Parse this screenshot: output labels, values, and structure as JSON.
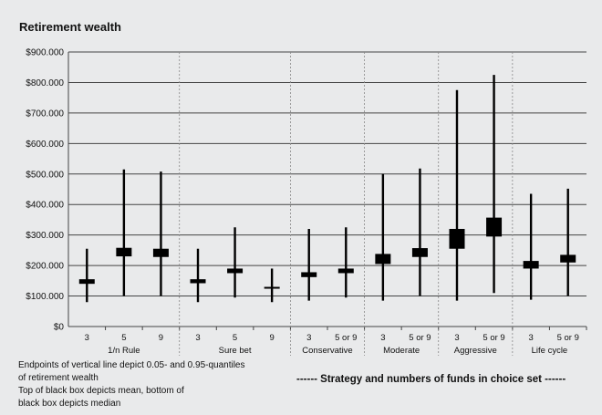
{
  "chart_data": {
    "type": "box",
    "title": "Retirement wealth",
    "y_ticks": [
      "$0",
      "$100.000",
      "$200.000",
      "$300.000",
      "$400.000",
      "$500.000",
      "$600.000",
      "$700.000",
      "$800.000",
      "$900.000"
    ],
    "ylim": [
      0,
      900000
    ],
    "grid": true,
    "groups": [
      {
        "label": "1/n Rule",
        "items": [
          {
            "label": "3",
            "q05": 80000,
            "q95": 255000,
            "mean": 155000,
            "median": 140000
          },
          {
            "label": "5",
            "q05": 100000,
            "q95": 515000,
            "mean": 258000,
            "median": 230000
          },
          {
            "label": "9",
            "q05": 100000,
            "q95": 508000,
            "mean": 255000,
            "median": 228000
          }
        ]
      },
      {
        "label": "Sure bet",
        "items": [
          {
            "label": "3",
            "q05": 80000,
            "q95": 255000,
            "mean": 155000,
            "median": 142000
          },
          {
            "label": "5",
            "q05": 95000,
            "q95": 325000,
            "mean": 190000,
            "median": 175000
          },
          {
            "label": "9",
            "q05": 80000,
            "q95": 190000,
            "mean": 130000,
            "median": 127000
          }
        ]
      },
      {
        "label": "Conservative",
        "items": [
          {
            "label": "3",
            "q05": 85000,
            "q95": 320000,
            "mean": 178000,
            "median": 162000
          },
          {
            "label": "5 or 9",
            "q05": 95000,
            "q95": 325000,
            "mean": 190000,
            "median": 175000
          }
        ]
      },
      {
        "label": "Moderate",
        "items": [
          {
            "label": "3",
            "q05": 85000,
            "q95": 500000,
            "mean": 238000,
            "median": 205000
          },
          {
            "label": "5 or 9",
            "q05": 100000,
            "q95": 518000,
            "mean": 257000,
            "median": 228000
          }
        ]
      },
      {
        "label": "Aggressive",
        "items": [
          {
            "label": "3",
            "q05": 85000,
            "q95": 775000,
            "mean": 320000,
            "median": 255000
          },
          {
            "label": "5 or 9",
            "q05": 110000,
            "q95": 825000,
            "mean": 357000,
            "median": 295000
          }
        ]
      },
      {
        "label": "Life cycle",
        "items": [
          {
            "label": "3",
            "q05": 88000,
            "q95": 435000,
            "mean": 215000,
            "median": 190000
          },
          {
            "label": "5 or 9",
            "q05": 100000,
            "q95": 452000,
            "mean": 235000,
            "median": 210000
          }
        ]
      }
    ],
    "colors": {
      "background": "#e9eaeb",
      "box": "#000000",
      "grid": "#444444",
      "separator": "#888888"
    }
  },
  "notes": [
    "Endpoints of vertical line depict 0.05- and 0.95-quantiles",
    "of retirement wealth",
    "Top of black box depicts mean, bottom of",
    "black box depicts median"
  ],
  "caption": "------ Strategy and numbers of funds in choice set ------"
}
